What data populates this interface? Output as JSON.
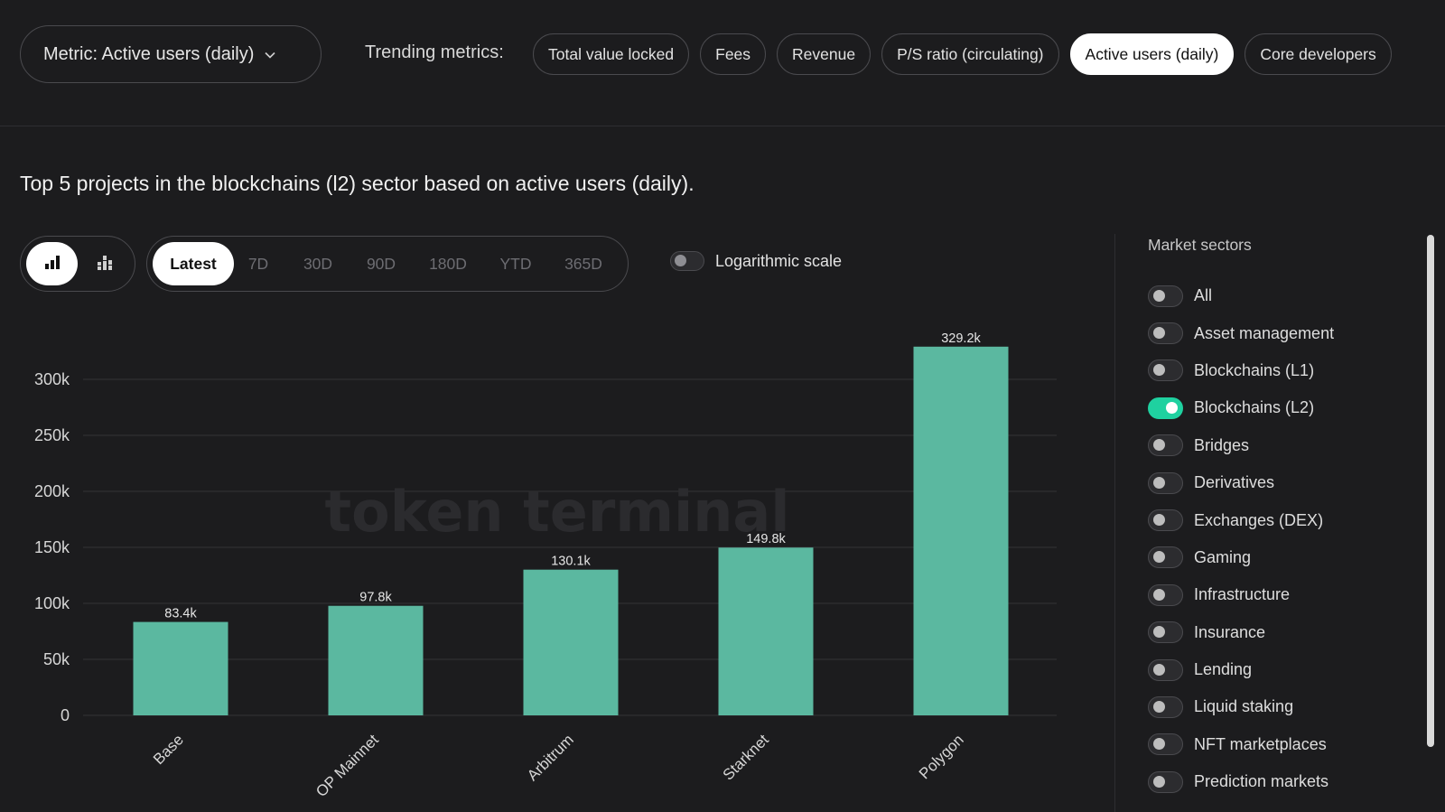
{
  "header": {
    "metric_select_label": "Metric: Active users (daily)",
    "trending_label": "Trending metrics:",
    "trending_pills": [
      {
        "label": "Total value locked",
        "active": false
      },
      {
        "label": "Fees",
        "active": false
      },
      {
        "label": "Revenue",
        "active": false
      },
      {
        "label": "P/S ratio (circulating)",
        "active": false
      },
      {
        "label": "Active users (daily)",
        "active": true
      },
      {
        "label": "Core developers",
        "active": false
      }
    ]
  },
  "headline": "Top 5 projects in the blockchains (l2) sector based on active users (daily).",
  "controls": {
    "chart_type_icons": [
      "bar-chart-icon",
      "stacked-bar-chart-icon"
    ],
    "ranges": [
      "Latest",
      "7D",
      "30D",
      "90D",
      "180D",
      "YTD",
      "365D"
    ],
    "selected_range": "Latest",
    "log_scale_label": "Logarithmic scale",
    "log_scale_on": false
  },
  "watermark": "token terminal",
  "colors": {
    "bar": "#5bb8a0",
    "toggle_on": "#1fd1a0",
    "background": "#1c1c1e"
  },
  "chart_data": {
    "type": "bar",
    "categories": [
      "Base",
      "OP Mainnet",
      "Arbitrum",
      "Starknet",
      "Polygon"
    ],
    "values": [
      83400,
      97800,
      130100,
      149800,
      329200
    ],
    "value_labels": [
      "83.4k",
      "97.8k",
      "130.1k",
      "149.8k",
      "329.2k"
    ],
    "y_ticks": [
      0,
      50000,
      100000,
      150000,
      200000,
      250000,
      300000
    ],
    "y_tick_labels": [
      "0",
      "50k",
      "100k",
      "150k",
      "200k",
      "250k",
      "300k"
    ],
    "ylim": [
      0,
      300000
    ],
    "grid": true
  },
  "sidebar": {
    "title": "Market sectors",
    "sectors": [
      {
        "label": "All",
        "on": false
      },
      {
        "label": "Asset management",
        "on": false
      },
      {
        "label": "Blockchains (L1)",
        "on": false
      },
      {
        "label": "Blockchains (L2)",
        "on": true
      },
      {
        "label": "Bridges",
        "on": false
      },
      {
        "label": "Derivatives",
        "on": false
      },
      {
        "label": "Exchanges (DEX)",
        "on": false
      },
      {
        "label": "Gaming",
        "on": false
      },
      {
        "label": "Infrastructure",
        "on": false
      },
      {
        "label": "Insurance",
        "on": false
      },
      {
        "label": "Lending",
        "on": false
      },
      {
        "label": "Liquid staking",
        "on": false
      },
      {
        "label": "NFT marketplaces",
        "on": false
      },
      {
        "label": "Prediction markets",
        "on": false
      }
    ]
  }
}
